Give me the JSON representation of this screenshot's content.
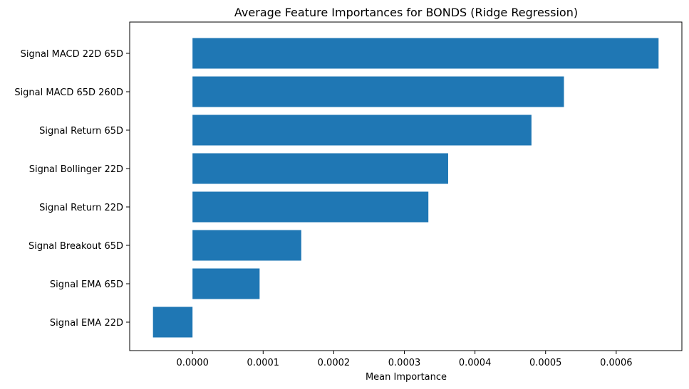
{
  "chart_data": {
    "type": "bar",
    "orientation": "horizontal",
    "title": "Average Feature Importances for BONDS (Ridge Regression)",
    "xlabel": "Mean Importance",
    "ylabel": "",
    "categories": [
      "Signal MACD 22D 65D",
      "Signal MACD 65D 260D",
      "Signal Return 65D",
      "Signal Bollinger 22D",
      "Signal Return 22D",
      "Signal Breakout 65D",
      "Signal EMA 65D",
      "Signal EMA 22D"
    ],
    "values": [
      0.00066,
      0.000526,
      0.00048,
      0.000362,
      0.000334,
      0.000154,
      9.5e-05,
      -5.6e-05
    ],
    "xlim": [
      -8.9e-05,
      0.000693
    ],
    "xticks": [
      0.0,
      0.0001,
      0.0002,
      0.0003,
      0.0004,
      0.0005,
      0.0006
    ],
    "xtick_labels": [
      "0.0000",
      "0.0001",
      "0.0002",
      "0.0003",
      "0.0004",
      "0.0005",
      "0.0006"
    ],
    "bar_color": "#1f77b4",
    "grid": false,
    "legend": false
  }
}
